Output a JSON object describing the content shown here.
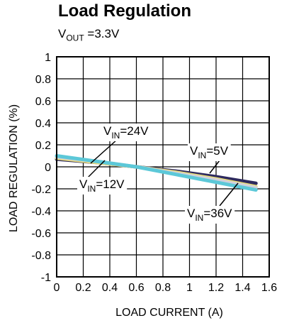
{
  "chart_data": {
    "type": "line",
    "title": "Load Regulation",
    "subtitle": {
      "main": "V",
      "sub": "OUT",
      "rest": " =3.3V"
    },
    "xlabel": "LOAD CURRENT (A)",
    "ylabel": "LOAD REGULATION (%)",
    "xlim": [
      0,
      1.6
    ],
    "ylim": [
      -1,
      1
    ],
    "x_ticks": [
      0,
      0.2,
      0.4,
      0.6,
      0.8,
      1,
      1.2,
      1.4,
      1.6
    ],
    "x_tick_labels": [
      "0",
      "0.2",
      "0.4",
      "0.6",
      "0.8",
      "1",
      "1.2",
      "1.4",
      "1.6"
    ],
    "y_ticks": [
      1,
      0.8,
      0.6,
      0.4,
      0.2,
      0,
      -0.2,
      -0.4,
      -0.6,
      -0.8,
      -1
    ],
    "y_tick_labels": [
      "1",
      "0.8",
      "0.6",
      "0.4",
      "0.2",
      "0",
      "-0.2",
      "-0.4",
      "-0.6",
      "-0.8",
      "-1"
    ],
    "grid": true,
    "series": [
      {
        "name": "VIN=5V",
        "color": "#2e2a5e",
        "x": [
          0,
          0.3,
          0.6,
          0.9,
          1.2,
          1.5
        ],
        "values": [
          0.07,
          0.04,
          0.0,
          -0.04,
          -0.09,
          -0.15
        ]
      },
      {
        "name": "VIN=12V",
        "color": "#e8dc78",
        "x": [
          0,
          0.3,
          0.6,
          0.9,
          1.2,
          1.5
        ],
        "values": [
          0.08,
          0.04,
          0.0,
          -0.05,
          -0.11,
          -0.18
        ]
      },
      {
        "name": "VIN=24V",
        "color": "#d0d0dc",
        "x": [
          0,
          0.3,
          0.6,
          0.9,
          1.2,
          1.5
        ],
        "values": [
          0.09,
          0.05,
          0.0,
          -0.06,
          -0.12,
          -0.19
        ]
      },
      {
        "name": "VIN=36V",
        "color": "#5cc8d8",
        "x": [
          0,
          0.3,
          0.6,
          0.9,
          1.2,
          1.5
        ],
        "values": [
          0.1,
          0.05,
          0.0,
          -0.07,
          -0.14,
          -0.21
        ]
      }
    ],
    "annotations": [
      {
        "main": "V",
        "sub": "IN",
        "rest": "=24V"
      },
      {
        "main": "V",
        "sub": "IN",
        "rest": "=12V"
      },
      {
        "main": "V",
        "sub": "IN",
        "rest": "=5V"
      },
      {
        "main": "V",
        "sub": "IN",
        "rest": "=36V"
      }
    ]
  }
}
